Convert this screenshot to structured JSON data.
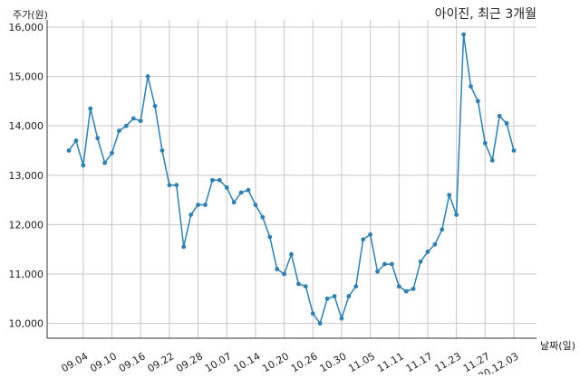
{
  "chart_data": {
    "type": "line",
    "title": "아이진, 최근 3개월",
    "xlabel": "날짜(일)",
    "ylabel": "주가(원)",
    "ylim": [
      9700,
      16100
    ],
    "grid": true,
    "y_ticks": [
      10000,
      11000,
      12000,
      13000,
      14000,
      15000,
      16000
    ],
    "y_tick_labels": [
      "10,000",
      "11,000",
      "12,000",
      "13,000",
      "14,000",
      "15,000",
      "16,000"
    ],
    "x_tick_labels": [
      "09.04",
      "09.10",
      "09.16",
      "09.22",
      "09.28",
      "10.07",
      "10.14",
      "10.20",
      "10.26",
      "10.30",
      "11.05",
      "11.11",
      "11.17",
      "11.23",
      "11.27",
      "20.12.03"
    ],
    "x_tick_index": [
      2,
      6,
      10,
      14,
      18,
      22,
      26,
      30,
      34,
      38,
      42,
      46,
      50,
      54,
      58,
      62
    ],
    "series": [
      {
        "color": "#2f7fb0",
        "values": [
          13500,
          13700,
          13200,
          14350,
          13750,
          13250,
          13450,
          13900,
          14000,
          14150,
          14100,
          15000,
          14400,
          13500,
          12800,
          12800,
          11550,
          12200,
          12400,
          12400,
          12900,
          12900,
          12750,
          12450,
          12650,
          12700,
          12400,
          12150,
          11750,
          11100,
          11000,
          11400,
          10800,
          10750,
          10200,
          10000,
          10500,
          10550,
          10100,
          10550,
          10750,
          11700,
          11800,
          11050,
          11200,
          11200,
          10750,
          10650,
          10700,
          11250,
          11450,
          11600,
          11900,
          12600,
          12200,
          15850,
          14800,
          14500,
          13650,
          13300,
          14200,
          14050,
          13500
        ]
      }
    ]
  }
}
